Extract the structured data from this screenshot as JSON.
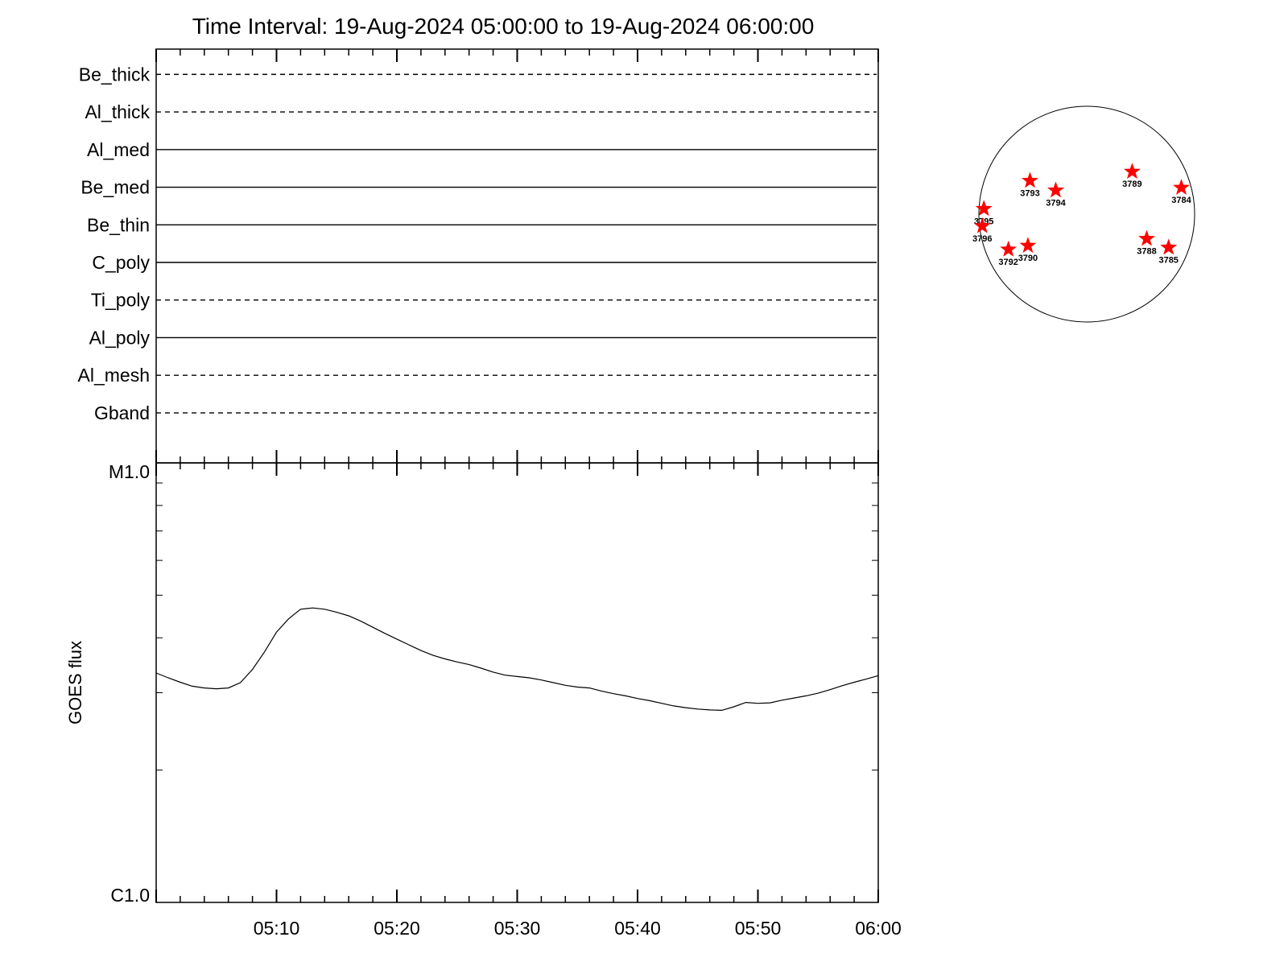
{
  "title": "Time Interval: 19-Aug-2024 05:00:00 to 19-Aug-2024 06:00:00",
  "chart_data": {
    "type": "line",
    "time_range": [
      "05:00",
      "06:00"
    ],
    "channels": [
      {
        "name": "Be_thick",
        "style": "dashed"
      },
      {
        "name": "Al_thick",
        "style": "dashed"
      },
      {
        "name": "Al_med",
        "style": "solid"
      },
      {
        "name": "Be_med",
        "style": "solid"
      },
      {
        "name": "Be_thin",
        "style": "solid"
      },
      {
        "name": "C_poly",
        "style": "solid"
      },
      {
        "name": "Ti_poly",
        "style": "dashed"
      },
      {
        "name": "Al_poly",
        "style": "solid"
      },
      {
        "name": "Al_mesh",
        "style": "dashed"
      },
      {
        "name": "Gband",
        "style": "dashed"
      }
    ],
    "ylabel": "GOES flux",
    "ytick_labels": [
      "M1.0",
      "C1.0"
    ],
    "ylim_log": [
      -6,
      -5
    ],
    "x_ticks": [
      "05:10",
      "05:20",
      "05:30",
      "05:40",
      "05:50",
      "06:00"
    ],
    "goes_series": {
      "x_min": [
        0,
        1,
        2,
        3,
        4,
        5,
        6,
        7,
        8,
        9,
        10,
        11,
        12,
        13,
        14,
        15,
        16,
        17,
        18,
        19,
        20,
        21,
        22,
        23,
        24,
        25,
        26,
        27,
        28,
        29,
        30,
        31,
        32,
        33,
        34,
        35,
        36,
        37,
        38,
        39,
        40,
        41,
        42,
        43,
        44,
        45,
        46,
        47,
        48,
        49,
        50,
        51,
        52,
        53,
        54,
        55,
        56,
        57,
        58,
        59,
        60
      ],
      "log_flux": [
        -5.478,
        -5.489,
        -5.499,
        -5.508,
        -5.512,
        -5.514,
        -5.512,
        -5.5,
        -5.47,
        -5.43,
        -5.385,
        -5.355,
        -5.333,
        -5.33,
        -5.333,
        -5.34,
        -5.348,
        -5.36,
        -5.374,
        -5.388,
        -5.401,
        -5.414,
        -5.427,
        -5.438,
        -5.446,
        -5.453,
        -5.459,
        -5.467,
        -5.476,
        -5.483,
        -5.486,
        -5.489,
        -5.494,
        -5.5,
        -5.506,
        -5.51,
        -5.512,
        -5.519,
        -5.525,
        -5.53,
        -5.536,
        -5.541,
        -5.547,
        -5.553,
        -5.557,
        -5.56,
        -5.562,
        -5.563,
        -5.555,
        -5.545,
        -5.547,
        -5.546,
        -5.54,
        -5.535,
        -5.53,
        -5.524,
        -5.516,
        -5.507,
        -5.499,
        -5.492,
        -5.484
      ]
    },
    "active_regions": [
      {
        "label": "3784",
        "x_arcsec": 833,
        "y_arcsec": 233
      },
      {
        "label": "3785",
        "x_arcsec": 721,
        "y_arcsec": -294
      },
      {
        "label": "3788",
        "x_arcsec": 528,
        "y_arcsec": -217
      },
      {
        "label": "3789",
        "x_arcsec": 400,
        "y_arcsec": 374
      },
      {
        "label": "3790",
        "x_arcsec": -518,
        "y_arcsec": -278
      },
      {
        "label": "3792",
        "x_arcsec": -690,
        "y_arcsec": -311
      },
      {
        "label": "3793",
        "x_arcsec": -500,
        "y_arcsec": 294
      },
      {
        "label": "3794",
        "x_arcsec": -273,
        "y_arcsec": 209
      },
      {
        "label": "3795",
        "x_arcsec": -906,
        "y_arcsec": 47
      },
      {
        "label": "3796",
        "x_arcsec": -920,
        "y_arcsec": -105
      }
    ],
    "colors": {
      "axes": "#000000",
      "marker": "#ff0000"
    }
  }
}
